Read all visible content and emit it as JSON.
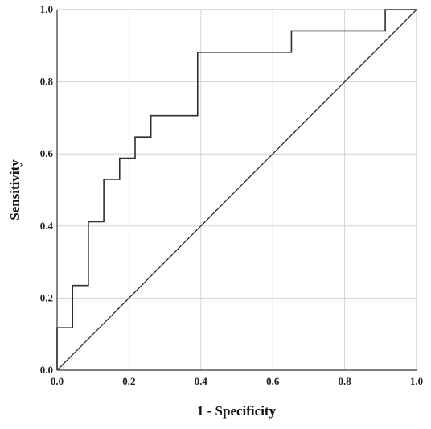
{
  "chart_data": {
    "type": "line",
    "xlabel": "1 - Specificity",
    "ylabel": "Sensitivity",
    "xlim": [
      0,
      1
    ],
    "ylim": [
      0,
      1
    ],
    "x_ticks": [
      "0.0",
      "0.2",
      "0.4",
      "0.6",
      "0.8",
      "1.0"
    ],
    "y_ticks": [
      "0.0",
      "0.2",
      "0.4",
      "0.6",
      "0.8",
      "1.0"
    ],
    "grid": true,
    "series": [
      {
        "style": "step",
        "x": [
          0,
          0,
          0.043,
          0.043,
          0.087,
          0.087,
          0.13,
          0.13,
          0.174,
          0.174,
          0.217,
          0.217,
          0.261,
          0.261,
          0.391,
          0.391,
          0.652,
          0.652,
          0.913,
          0.913,
          1
        ],
        "y": [
          0,
          0.118,
          0.118,
          0.235,
          0.235,
          0.412,
          0.412,
          0.529,
          0.529,
          0.588,
          0.588,
          0.647,
          0.647,
          0.706,
          0.706,
          0.882,
          0.882,
          0.941,
          0.941,
          1,
          1
        ]
      },
      {
        "style": "reference",
        "x": [
          0,
          1
        ],
        "y": [
          0,
          1
        ]
      }
    ]
  }
}
